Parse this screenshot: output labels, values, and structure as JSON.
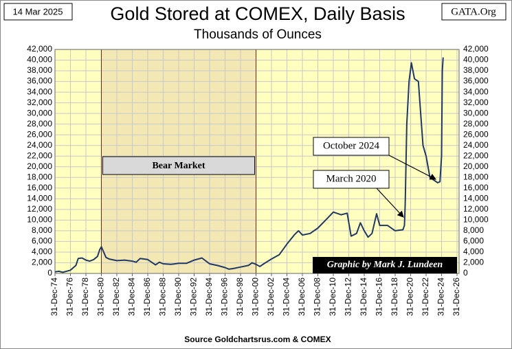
{
  "chart_data": {
    "type": "line",
    "title": "Gold Stored at COMEX, Daily Basis",
    "subtitle": "Thousands  of Ounces",
    "date_label": "14 Mar 2025",
    "site_label": "GATA.Org",
    "credit": "Graphic by Mark J. Lundeen",
    "source": "Source  Goldchartsrus.com  & COMEX",
    "annotations": [
      "October 2024",
      "March 2020"
    ],
    "bear_market": {
      "label": "Bear Market",
      "start": 1981,
      "end": 2001
    },
    "color": "#1f3864",
    "grid": true,
    "x": [
      1975.0,
      1975.5,
      1976.0,
      1977.0,
      1977.7,
      1978.0,
      1978.5,
      1979.0,
      1979.5,
      1980.0,
      1980.5,
      1980.8,
      1981.0,
      1981.3,
      1981.6,
      1982.0,
      1983.0,
      1984.0,
      1985.0,
      1985.5,
      1986.0,
      1987.0,
      1988.0,
      1988.5,
      1989.0,
      1990.0,
      1991.0,
      1992.0,
      1993.0,
      1994.0,
      1995.0,
      1996.0,
      1997.0,
      1997.5,
      1998.0,
      1999.0,
      2000.0,
      2000.5,
      2001.0,
      2001.5,
      2002.0,
      2003.0,
      2004.0,
      2005.0,
      2006.0,
      2006.5,
      2007.0,
      2008.0,
      2009.0,
      2010.0,
      2011.0,
      2012.0,
      2012.8,
      2013.3,
      2014.0,
      2014.5,
      2015.0,
      2015.5,
      2016.0,
      2016.6,
      2017.0,
      2018.0,
      2019.0,
      2020.0,
      2020.2,
      2020.3,
      2020.5,
      2020.8,
      2021.1,
      2021.5,
      2022.0,
      2022.3,
      2022.6,
      2023.0,
      2023.5,
      2024.0,
      2024.5,
      2024.8,
      2025.0,
      2025.1,
      2025.2
    ],
    "values": [
      300,
      400,
      200,
      600,
      1500,
      2800,
      2900,
      2500,
      2300,
      2600,
      3200,
      4500,
      5000,
      4000,
      3000,
      2700,
      2400,
      2500,
      2300,
      2100,
      2800,
      2600,
      1600,
      2100,
      1800,
      1700,
      1900,
      1900,
      2500,
      2900,
      1800,
      1500,
      1100,
      800,
      900,
      1200,
      1500,
      2000,
      1700,
      1300,
      1800,
      2700,
      3500,
      5500,
      7300,
      8000,
      7200,
      7500,
      8500,
      10000,
      11500,
      11000,
      11300,
      7000,
      7500,
      9500,
      8000,
      6800,
      7500,
      11200,
      9000,
      9000,
      8000,
      8200,
      9000,
      13000,
      28000,
      36000,
      39500,
      36500,
      36000,
      30000,
      24000,
      22000,
      18000,
      17500,
      17000,
      17200,
      22000,
      38000,
      40500
    ],
    "xlim": [
      1975,
      2027
    ],
    "xticks": [
      {
        "value": 1975,
        "label": "31-Dec-74"
      },
      {
        "value": 1977,
        "label": "31-Dec-76"
      },
      {
        "value": 1979,
        "label": "31-Dec-78"
      },
      {
        "value": 1981,
        "label": "31-Dec-80"
      },
      {
        "value": 1983,
        "label": "31-Dec-82"
      },
      {
        "value": 1985,
        "label": "31-Dec-84"
      },
      {
        "value": 1987,
        "label": "31-Dec-86"
      },
      {
        "value": 1989,
        "label": "31-Dec-88"
      },
      {
        "value": 1991,
        "label": "31-Dec-90"
      },
      {
        "value": 1993,
        "label": "31-Dec-92"
      },
      {
        "value": 1995,
        "label": "31-Dec-94"
      },
      {
        "value": 1997,
        "label": "31-Dec-96"
      },
      {
        "value": 1999,
        "label": "31-Dec-98"
      },
      {
        "value": 2001,
        "label": "31-Dec-00"
      },
      {
        "value": 2003,
        "label": "31-Dec-02"
      },
      {
        "value": 2005,
        "label": "31-Dec-04"
      },
      {
        "value": 2007,
        "label": "31-Dec-06"
      },
      {
        "value": 2009,
        "label": "31-Dec-08"
      },
      {
        "value": 2011,
        "label": "31-Dec-10"
      },
      {
        "value": 2013,
        "label": "31-Dec-12"
      },
      {
        "value": 2015,
        "label": "31-Dec-14"
      },
      {
        "value": 2017,
        "label": "31-Dec-16"
      },
      {
        "value": 2019,
        "label": "31-Dec-18"
      },
      {
        "value": 2021,
        "label": "31-Dec-20"
      },
      {
        "value": 2023,
        "label": "31-Dec-22"
      },
      {
        "value": 2025,
        "label": "31-Dec-24"
      },
      {
        "value": 2027,
        "label": "31-Dec-26"
      }
    ],
    "ylim": [
      0,
      42000
    ],
    "yticks": [
      0,
      {
        "value": 2000,
        "label": "2,000"
      },
      {
        "value": 4000,
        "label": "4,000"
      },
      {
        "value": 6000,
        "label": "6,000"
      },
      {
        "value": 8000,
        "label": "8,000"
      },
      {
        "value": 10000,
        "label": "10,000"
      },
      {
        "value": 12000,
        "label": "12,000"
      },
      {
        "value": 14000,
        "label": "14,000"
      },
      {
        "value": 16000,
        "label": "16,000"
      },
      {
        "value": 18000,
        "label": "18,000"
      },
      {
        "value": 20000,
        "label": "20,000"
      },
      {
        "value": 22000,
        "label": "22,000"
      },
      {
        "value": 24000,
        "label": "24,000"
      },
      {
        "value": 26000,
        "label": "26,000"
      },
      {
        "value": 28000,
        "label": "28,000"
      },
      {
        "value": 30000,
        "label": "30,000"
      },
      {
        "value": 32000,
        "label": "32,000"
      },
      {
        "value": 34000,
        "label": "34,000"
      },
      {
        "value": 36000,
        "label": "36,000"
      },
      {
        "value": 38000,
        "label": "38,000"
      },
      {
        "value": 40000,
        "label": "40,000"
      },
      {
        "value": 42000,
        "label": "42,000"
      }
    ]
  }
}
